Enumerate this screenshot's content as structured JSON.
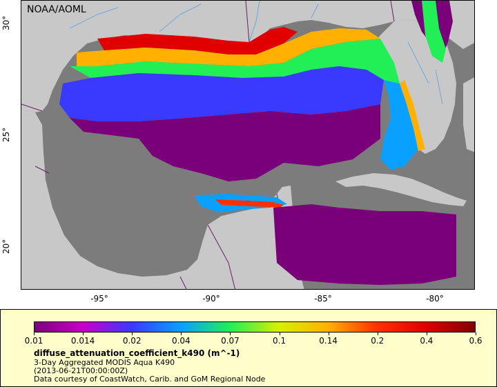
{
  "map": {
    "credit": "NOAA/AOML",
    "lat_ticks": [
      {
        "label": "30°",
        "value": 30
      },
      {
        "label": "25°",
        "value": 25
      },
      {
        "label": "20°",
        "value": 20
      }
    ],
    "lon_ticks": [
      {
        "label": "-95°",
        "value": -95
      },
      {
        "label": "-90°",
        "value": -90
      },
      {
        "label": "-85°",
        "value": -85
      },
      {
        "label": "-80°",
        "value": -80
      }
    ],
    "colors": {
      "land": "#c8c8c8",
      "no_data_water": "#7c7c7c",
      "rivers": "#6fa8dc",
      "borders": "#6b1a6b"
    }
  },
  "legend": {
    "colorbar_ticks": [
      "0.01",
      "0.014",
      "0.02",
      "0.04",
      "0.07",
      "0.1",
      "0.14",
      "0.2",
      "0.4",
      "0.6"
    ],
    "colorbar_colors": [
      "#7a007a",
      "#c800c8",
      "#3a3aff",
      "#0aa0ff",
      "#22ee55",
      "#d8f000",
      "#ffb000",
      "#ff3000",
      "#e00000",
      "#800000"
    ],
    "variable": "diffuse_attenuation_coefficient_k490 (m^-1)",
    "product": "3-Day Aggregated MODIS Aqua K490",
    "time": "(2013-06-21T00:00:00Z)",
    "courtesy": "Data courtesy of CoastWatch, Carib. and GoM Regional Node"
  }
}
